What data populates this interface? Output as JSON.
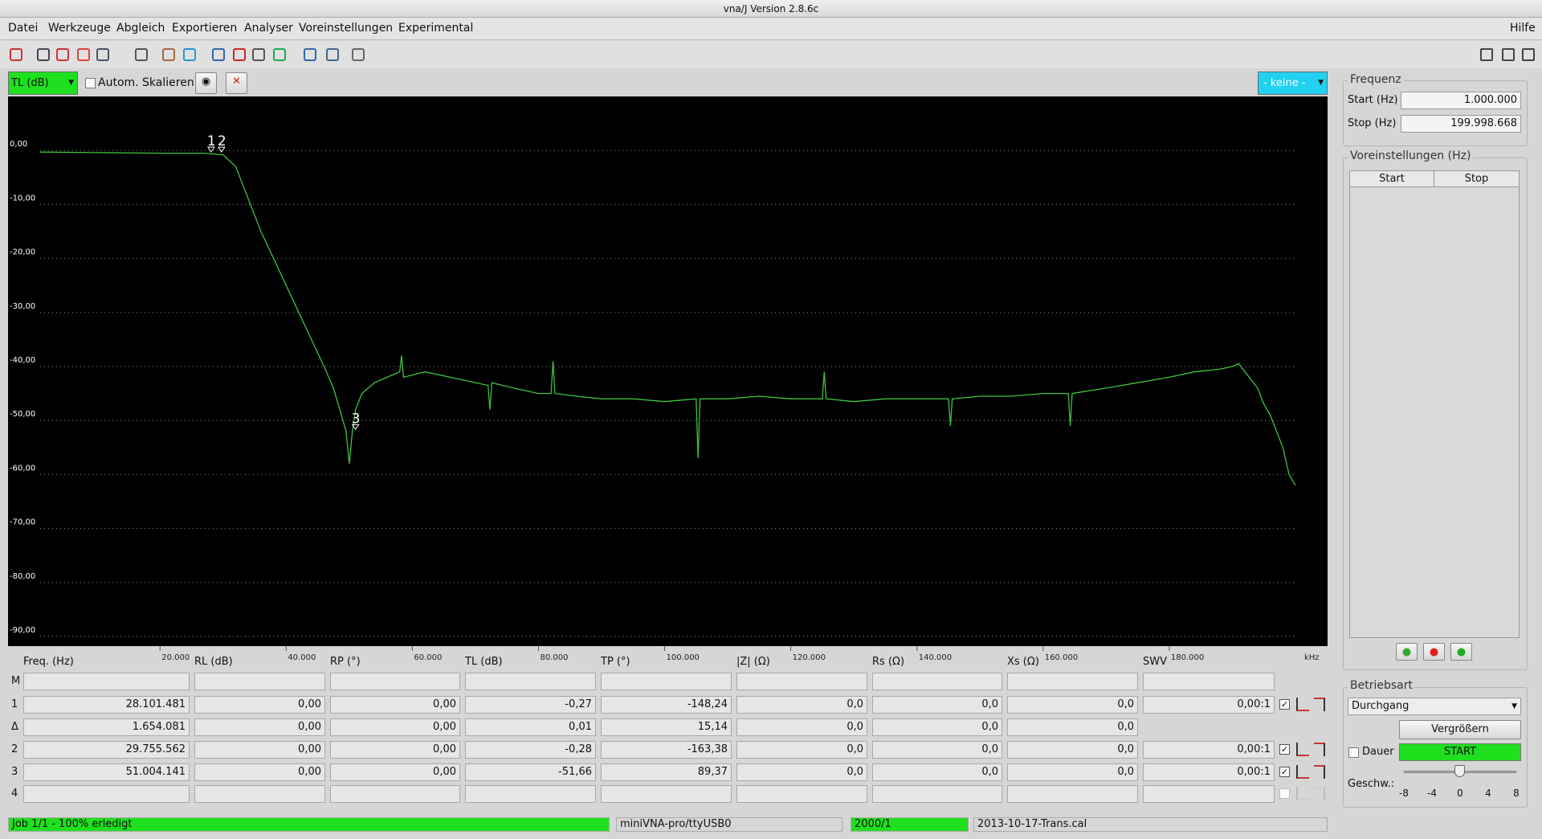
{
  "window": {
    "title": "vna/J Version 2.8.6c"
  },
  "menu": [
    "Datei",
    "Werkzeuge",
    "Abgleich",
    "Exportieren",
    "Analyser",
    "Voreinstellungen",
    "Experimental"
  ],
  "help": "Hilfe",
  "chart_toolbar": {
    "mode": "TL (dB)",
    "autoscale": "Autom. Skalieren",
    "reference": "- keine -"
  },
  "chart_data": {
    "type": "line",
    "x": [
      1000,
      10000,
      20000,
      27000,
      30000,
      32000,
      34000,
      36000,
      38000,
      40000,
      42000,
      44000,
      46000,
      47500,
      48500,
      49500,
      50000,
      50500,
      51000,
      52000,
      54000,
      56000,
      57000,
      58000,
      58300,
      58600,
      62000,
      66000,
      70000,
      72000,
      72300,
      72600,
      76000,
      80000,
      82000,
      82300,
      82600,
      86000,
      90000,
      95000,
      100000,
      105000,
      105300,
      105600,
      110000,
      115000,
      120000,
      125000,
      125300,
      125600,
      130000,
      135000,
      140000,
      145000,
      145300,
      145600,
      150000,
      155000,
      160000,
      164000,
      164300,
      164600,
      170000,
      175000,
      180000,
      184000,
      188000,
      190000,
      191000,
      192000,
      194000,
      195000,
      196000,
      197000,
      198000,
      199000,
      200000
    ],
    "values": [
      -0.3,
      -0.4,
      -0.5,
      -0.5,
      -0.8,
      -3,
      -9,
      -15,
      -20,
      -25,
      -30,
      -35,
      -40,
      -44,
      -48,
      -52,
      -58,
      -52,
      -48,
      -45,
      -43,
      -42,
      -41.5,
      -41,
      -38,
      -42,
      -41,
      -42,
      -43,
      -43.5,
      -48,
      -43,
      -44,
      -45,
      -45,
      -39,
      -45,
      -45.5,
      -46,
      -46,
      -46.5,
      -46,
      -57,
      -46,
      -46,
      -45.5,
      -46,
      -46,
      -41,
      -46,
      -46.5,
      -46,
      -46,
      -46,
      -51,
      -46,
      -45.5,
      -45.5,
      -45,
      -45,
      -51,
      -45,
      -44,
      -43,
      -42,
      -41,
      -40.5,
      -40,
      -39.5,
      -41,
      -44,
      -47,
      -49,
      -52,
      -55,
      -60,
      -62
    ],
    "color": "#3fc33f",
    "xlim": [
      1000,
      200000
    ],
    "ylim": [
      -90,
      10
    ],
    "xticks": [
      {
        "value": 20000,
        "label": "20.000"
      },
      {
        "value": 40000,
        "label": "40.000"
      },
      {
        "value": 60000,
        "label": "60.000"
      },
      {
        "value": 80000,
        "label": "80.000"
      },
      {
        "value": 100000,
        "label": "100.000"
      },
      {
        "value": 120000,
        "label": "120.000"
      },
      {
        "value": 140000,
        "label": "140.000"
      },
      {
        "value": 160000,
        "label": "160.000"
      },
      {
        "value": 180000,
        "label": "180.000"
      }
    ],
    "yticks": [
      {
        "value": 0,
        "label": "0,00"
      },
      {
        "value": -10,
        "label": "-10,00"
      },
      {
        "value": -20,
        "label": "-20,00"
      },
      {
        "value": -30,
        "label": "-30,00"
      },
      {
        "value": -40,
        "label": "-40,00"
      },
      {
        "value": -50,
        "label": "-50,00"
      },
      {
        "value": -60,
        "label": "-60,00"
      },
      {
        "value": -70,
        "label": "-70,00"
      },
      {
        "value": -80,
        "label": "-80,00"
      },
      {
        "value": -90,
        "label": "-90,00"
      }
    ],
    "x_unit": "kHz",
    "grid": true,
    "markers": [
      {
        "label": "1",
        "x": 28101,
        "y": -0.27
      },
      {
        "label": "2",
        "x": 29755,
        "y": -0.28
      },
      {
        "label": "3",
        "x": 51004,
        "y": -51.66
      }
    ]
  },
  "marker_table": {
    "columns": [
      "Freq. (Hz)",
      "RL (dB)",
      "RP (°)",
      "TL (dB)",
      "TP (°)",
      "|Z| (Ω)",
      "Rs (Ω)",
      "Xs (Ω)",
      "SWV"
    ],
    "rows": [
      {
        "label": "M",
        "cells": []
      },
      {
        "label": "1",
        "cells": [
          "28.101.481",
          "0,00",
          "0,00",
          "-0,27",
          "-148,24",
          "0,0",
          "0,0",
          "0,0",
          "0,00:1"
        ]
      },
      {
        "label": "Δ",
        "cells": [
          "1.654.081",
          "0,00",
          "0,00",
          "0,01",
          "15,14",
          "0,0",
          "0,0",
          "0,0"
        ]
      },
      {
        "label": "2",
        "cells": [
          "29.755.562",
          "0,00",
          "0,00",
          "-0,28",
          "-163,38",
          "0,0",
          "0,0",
          "0,0",
          "0,00:1"
        ]
      },
      {
        "label": "3",
        "cells": [
          "51.004.141",
          "0,00",
          "0,00",
          "-51,66",
          "89,37",
          "0,0",
          "0,0",
          "0,0",
          "0,00:1"
        ]
      },
      {
        "label": "4",
        "cells": []
      }
    ]
  },
  "frequency": {
    "title": "Frequenz",
    "start_label": "Start (Hz)",
    "start": "1.000.000",
    "stop_label": "Stop (Hz)",
    "stop": "199.998.668"
  },
  "presets": {
    "title": "Voreinstellungen (Hz)",
    "columns": [
      "Start",
      "Stop"
    ]
  },
  "mode": {
    "title": "Betriebsart",
    "value": "Durchgang",
    "zoom": "Vergrößern",
    "continuous": "Dauer",
    "start": "START",
    "speed": "Geschw.:",
    "speed_ticks": [
      -8,
      -4,
      0,
      4,
      8
    ]
  },
  "status": [
    "Job 1/1 - 100% erledigt",
    "miniVNA-pro/ttyUSB0",
    "2000/1",
    "2013-10-17-Trans.cal"
  ]
}
